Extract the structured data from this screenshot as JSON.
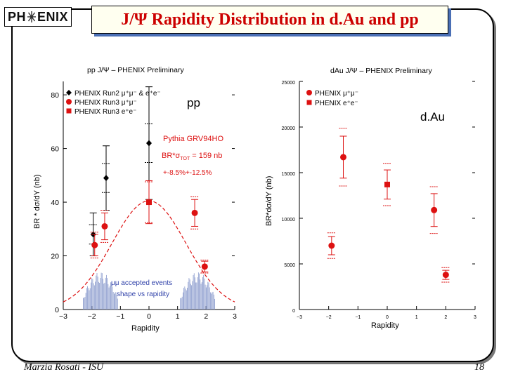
{
  "slide": {
    "logo": {
      "left": "PH",
      "right": "ENIX"
    },
    "title": "J/Ψ Rapidity Distribution in d.Au and pp",
    "footer_left": "Marzia Rosati -  ISU",
    "page_number": "18"
  },
  "chart_data": [
    {
      "type": "scatter",
      "title": "pp  J/Ψ – PHENIX Preliminary",
      "panel_label": "pp",
      "xlabel": "Rapidity",
      "ylabel": "BR * dσ/dY (nb)",
      "xlim": [
        -3,
        3
      ],
      "ylim": [
        0,
        85
      ],
      "xticks": [
        "−3",
        "−2",
        "−1",
        "0",
        "1",
        "2",
        "3"
      ],
      "yticks": [
        "0",
        "20",
        "40",
        "60",
        "80"
      ],
      "legend": [
        "PHENIX Run2 μ⁺μ⁻ & e⁺e⁻",
        "PHENIX Run3 μ⁺μ⁻",
        "PHENIX Run3 e⁺e⁻"
      ],
      "legend_position": "top-left",
      "annotations": {
        "model": "Pythia GRV94HO",
        "sigma": "BR*σ",
        "sigma_sub": "TOT",
        "sigma_val": " = 159 nb",
        "range": "+-8.5%+-12.5%",
        "hist_line1": "μμ accepted events",
        "hist_line2": "shape vs rapidity"
      },
      "series": [
        {
          "name": "PHENIX Run2 μ⁺μ⁻ & e⁺e⁻",
          "marker": "diamond",
          "color": "#000000",
          "points": [
            {
              "x": -1.95,
              "y": 28,
              "err": 8,
              "sys": 2
            },
            {
              "x": -1.5,
              "y": 49,
              "err": 12,
              "sys": 3
            },
            {
              "x": 0.0,
              "y": 62,
              "err": 21,
              "sys": 3
            }
          ]
        },
        {
          "name": "PHENIX Run3 μ⁺μ⁻",
          "marker": "circle",
          "color": "#dd1111",
          "points": [
            {
              "x": -1.9,
              "y": 24,
              "err": 4,
              "sys": 4
            },
            {
              "x": -1.55,
              "y": 31,
              "err": 5,
              "sys": 5
            },
            {
              "x": 1.6,
              "y": 36,
              "err": 5,
              "sys": 5
            },
            {
              "x": 1.95,
              "y": 16,
              "err": 2,
              "sys": 2
            }
          ]
        },
        {
          "name": "PHENIX Run3 e⁺e⁻",
          "marker": "square",
          "color": "#dd1111",
          "points": [
            {
              "x": 0.0,
              "y": 40,
              "err": 8,
              "sys": 6
            }
          ]
        }
      ],
      "curve": {
        "name": "Pythia GRV94HO",
        "color": "#dd1111",
        "peak": 40.5,
        "sigma": 1.3
      },
      "histogram": {
        "color": "#8899cc",
        "bands": [
          [
            -2.3,
            -1.1
          ],
          [
            1.1,
            2.3
          ]
        ],
        "peak": 14
      }
    },
    {
      "type": "scatter",
      "title": "dAu  J/Ψ – PHENIX Preliminary",
      "panel_label": "d.Au",
      "xlabel": "Rapidity",
      "ylabel": "BR*dσ/dY (nb)",
      "xlim": [
        -3,
        3
      ],
      "ylim": [
        0,
        25000
      ],
      "xticks": [
        "−3",
        "−2",
        "−1",
        "0",
        "1",
        "2",
        "3"
      ],
      "yticks": [
        "0",
        "5000",
        "10000",
        "15000",
        "20000",
        "25000"
      ],
      "legend": [
        "PHENIX μ⁺μ⁻",
        "PHENIX e⁺e⁻"
      ],
      "legend_position": "top-left",
      "series": [
        {
          "name": "PHENIX μ⁺μ⁻",
          "marker": "circle",
          "color": "#dd1111",
          "points": [
            {
              "x": -1.9,
              "y": 7000,
              "err": 1000,
              "sys": 1200
            },
            {
              "x": -1.5,
              "y": 16700,
              "err": 2300,
              "sys": 2700
            },
            {
              "x": 1.6,
              "y": 10900,
              "err": 1800,
              "sys": 2200
            },
            {
              "x": 2.0,
              "y": 3800,
              "err": 500,
              "sys": 700
            }
          ]
        },
        {
          "name": "PHENIX e⁺e⁻",
          "marker": "square",
          "color": "#dd1111",
          "points": [
            {
              "x": 0.0,
              "y": 13700,
              "err": 1600,
              "sys": 2000
            }
          ]
        }
      ]
    }
  ]
}
